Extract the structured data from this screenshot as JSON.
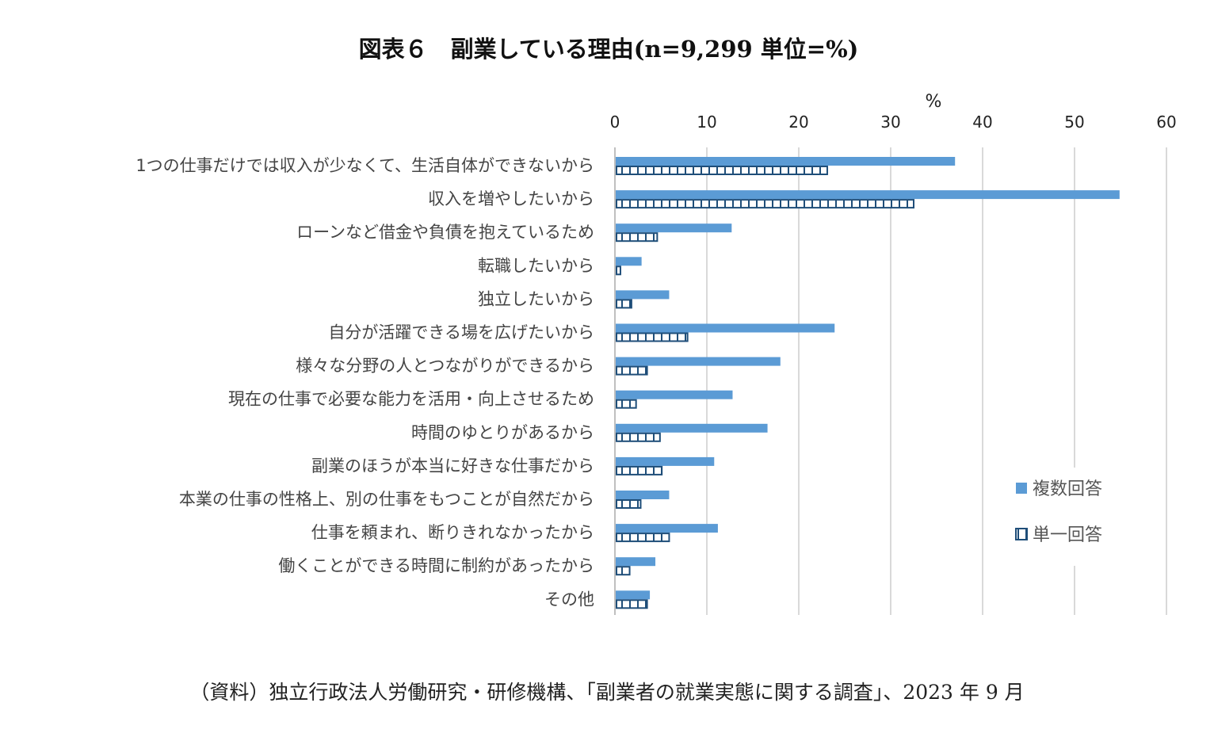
{
  "title": "図表６　副業している理由(n=9,299  単位=%)",
  "source": "（資料）独立行政法人労働研究・研修機構、「副業者の就業実態に関する調査」、2023 年 9 月",
  "chart_data": {
    "type": "bar",
    "orientation": "horizontal",
    "title": "図表６　副業している理由(n=9,299  単位=%)",
    "unit_label": "%",
    "xlim": [
      0,
      60
    ],
    "xticks": [
      0,
      10,
      20,
      30,
      40,
      50,
      60
    ],
    "grid": "vertical",
    "legend_position": "right",
    "categories": [
      "1つの仕事だけでは収入が少なくて、生活自体ができないから",
      "収入を増やしたいから",
      "ローンなど借金や負債を抱えているため",
      "転職したいから",
      "独立したいから",
      "自分が活躍できる場を広げたいから",
      "様々な分野の人とつながりができるから",
      "現在の仕事で必要な能力を活用・向上させるため",
      "時間のゆとりがあるから",
      "副業のほうが本当に好きな仕事だから",
      "本業の仕事の性格上、別の仕事をもつことが自然だから",
      "仕事を頼まれ、断りきれなかったから",
      "働くことができる時間に制約があったから",
      "その他"
    ],
    "series": [
      {
        "name": "複数回答",
        "color": "#5b9bd5",
        "pattern": "solid",
        "values": [
          37.0,
          54.9,
          12.7,
          2.9,
          5.9,
          23.9,
          18.0,
          12.8,
          16.6,
          10.8,
          5.9,
          11.2,
          4.4,
          3.8
        ]
      },
      {
        "name": "単一回答",
        "color": "#1f4e79",
        "pattern": "grid",
        "values": [
          23.1,
          32.5,
          4.6,
          0.6,
          1.8,
          7.9,
          3.5,
          2.3,
          4.9,
          5.1,
          2.8,
          5.9,
          1.6,
          3.5
        ]
      }
    ]
  }
}
